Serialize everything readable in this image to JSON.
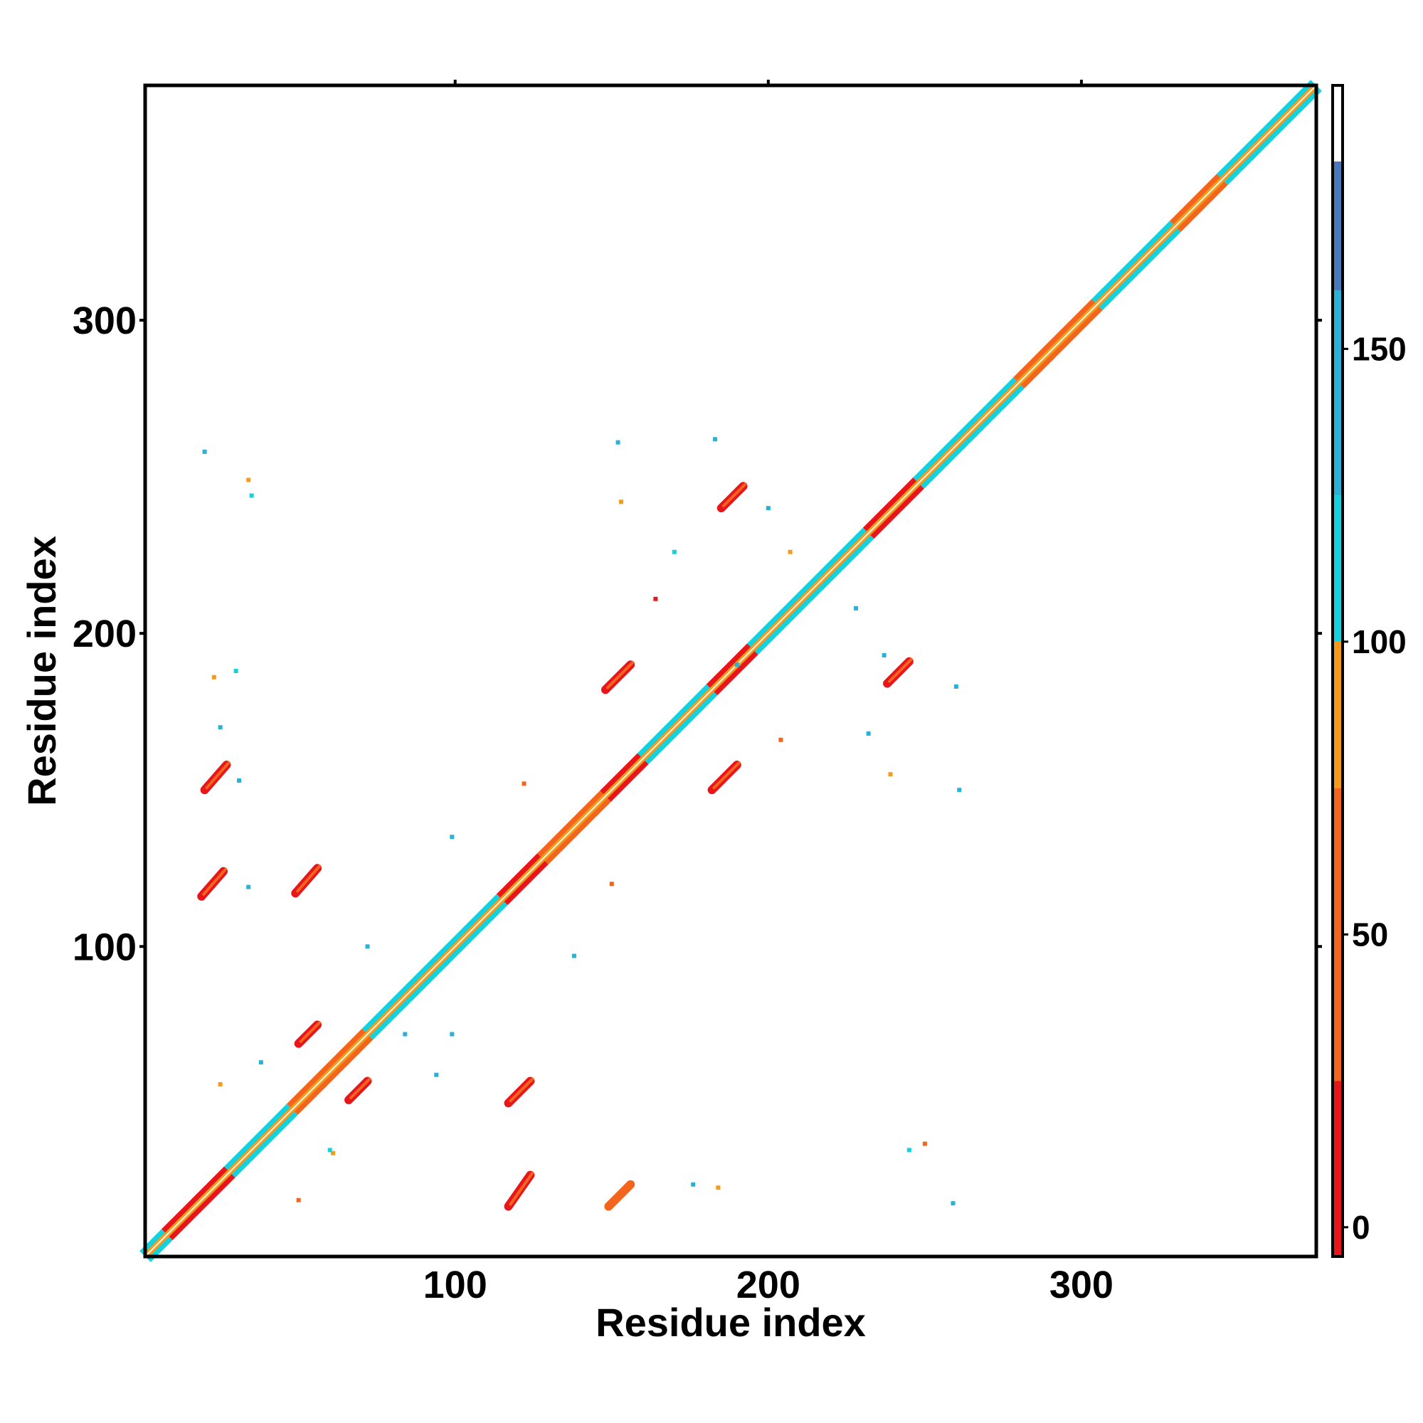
{
  "chart_data": {
    "type": "heatmap",
    "title": "",
    "xlabel": "Residue index",
    "ylabel": "Residue index",
    "xlim": [
      1,
      375
    ],
    "ylim": [
      1,
      375
    ],
    "x_ticks": [
      100,
      200,
      300
    ],
    "y_ticks": [
      100,
      200,
      300
    ],
    "grid": false,
    "colorbar": {
      "ticks": [
        0,
        50,
        100,
        150
      ],
      "range": [
        -5,
        195
      ],
      "bands": [
        {
          "from": -5,
          "to": 25,
          "color": "#e8151b"
        },
        {
          "from": 25,
          "to": 75,
          "color": "#f3641d"
        },
        {
          "from": 75,
          "to": 100,
          "color": "#f59a1a"
        },
        {
          "from": 100,
          "to": 125,
          "color": "#15d0dd"
        },
        {
          "from": 125,
          "to": 160,
          "color": "#2bb0d6"
        },
        {
          "from": 160,
          "to": 182,
          "color": "#4a78b8"
        },
        {
          "from": 182,
          "to": 195,
          "color": "#ffffff"
        }
      ]
    },
    "colors": {
      "red": "#e8151b",
      "orange_red": "#f3641d",
      "orange": "#f59a1a",
      "cyan": "#15d0dd",
      "light_blue": "#2bb0d6",
      "steel_blue": "#4a78b8"
    },
    "diagonal": {
      "segments": [
        {
          "from": 1,
          "to": 8,
          "color": "cyan"
        },
        {
          "from": 8,
          "to": 28,
          "color": "red"
        },
        {
          "from": 28,
          "to": 48,
          "color": "cyan"
        },
        {
          "from": 48,
          "to": 72,
          "color": "orange_red"
        },
        {
          "from": 72,
          "to": 95,
          "color": "cyan"
        },
        {
          "from": 95,
          "to": 115,
          "color": "cyan"
        },
        {
          "from": 115,
          "to": 128,
          "color": "red"
        },
        {
          "from": 128,
          "to": 148,
          "color": "orange_red"
        },
        {
          "from": 148,
          "to": 160,
          "color": "red"
        },
        {
          "from": 160,
          "to": 182,
          "color": "cyan"
        },
        {
          "from": 182,
          "to": 195,
          "color": "red"
        },
        {
          "from": 195,
          "to": 232,
          "color": "cyan"
        },
        {
          "from": 232,
          "to": 248,
          "color": "red"
        },
        {
          "from": 248,
          "to": 280,
          "color": "cyan"
        },
        {
          "from": 280,
          "to": 305,
          "color": "orange_red"
        },
        {
          "from": 305,
          "to": 330,
          "color": "cyan"
        },
        {
          "from": 330,
          "to": 345,
          "color": "orange_red"
        },
        {
          "from": 345,
          "to": 375,
          "color": "cyan"
        }
      ]
    },
    "contact_streaks": [
      {
        "x": [
          117,
          124
        ],
        "y": [
          17,
          27
        ],
        "color": "red"
      },
      {
        "x": [
          149,
          156
        ],
        "y": [
          17,
          24
        ],
        "color": "orange_red"
      },
      {
        "x": [
          117,
          124
        ],
        "y": [
          50,
          57
        ],
        "color": "red"
      },
      {
        "x": [
          66,
          72
        ],
        "y": [
          51,
          57
        ],
        "color": "red"
      },
      {
        "x": [
          50,
          56
        ],
        "y": [
          69,
          75
        ],
        "color": "red"
      },
      {
        "x": [
          19,
          26
        ],
        "y": [
          116,
          124
        ],
        "color": "red"
      },
      {
        "x": [
          49,
          56
        ],
        "y": [
          117,
          125
        ],
        "color": "red"
      },
      {
        "x": [
          20,
          27
        ],
        "y": [
          150,
          158
        ],
        "color": "red"
      },
      {
        "x": [
          182,
          190
        ],
        "y": [
          150,
          158
        ],
        "color": "red"
      },
      {
        "x": [
          148,
          156
        ],
        "y": [
          182,
          190
        ],
        "color": "red"
      },
      {
        "x": [
          238,
          245
        ],
        "y": [
          184,
          191
        ],
        "color": "red"
      },
      {
        "x": [
          185,
          192
        ],
        "y": [
          240,
          247
        ],
        "color": "red"
      }
    ],
    "scattered_contacts": [
      {
        "x": 20,
        "y": 258,
        "color": "light_blue"
      },
      {
        "x": 34,
        "y": 249,
        "color": "orange"
      },
      {
        "x": 35,
        "y": 244,
        "color": "cyan"
      },
      {
        "x": 152,
        "y": 261,
        "color": "light_blue"
      },
      {
        "x": 153,
        "y": 242,
        "color": "orange"
      },
      {
        "x": 183,
        "y": 262,
        "color": "light_blue"
      },
      {
        "x": 170,
        "y": 226,
        "color": "cyan"
      },
      {
        "x": 200,
        "y": 240,
        "color": "light_blue"
      },
      {
        "x": 207,
        "y": 226,
        "color": "orange"
      },
      {
        "x": 164,
        "y": 211,
        "color": "red"
      },
      {
        "x": 228,
        "y": 208,
        "color": "light_blue"
      },
      {
        "x": 237,
        "y": 193,
        "color": "light_blue"
      },
      {
        "x": 260,
        "y": 183,
        "color": "light_blue"
      },
      {
        "x": 232,
        "y": 168,
        "color": "light_blue"
      },
      {
        "x": 204,
        "y": 166,
        "color": "orange_red"
      },
      {
        "x": 239,
        "y": 155,
        "color": "orange"
      },
      {
        "x": 261,
        "y": 150,
        "color": "light_blue"
      },
      {
        "x": 23,
        "y": 186,
        "color": "orange"
      },
      {
        "x": 30,
        "y": 188,
        "color": "cyan"
      },
      {
        "x": 25,
        "y": 170,
        "color": "light_blue"
      },
      {
        "x": 31,
        "y": 153,
        "color": "light_blue"
      },
      {
        "x": 34,
        "y": 119,
        "color": "light_blue"
      },
      {
        "x": 38,
        "y": 63,
        "color": "light_blue"
      },
      {
        "x": 25,
        "y": 56,
        "color": "orange"
      },
      {
        "x": 61,
        "y": 34,
        "color": "orange"
      },
      {
        "x": 50,
        "y": 19,
        "color": "orange_red"
      },
      {
        "x": 94,
        "y": 59,
        "color": "light_blue"
      },
      {
        "x": 99,
        "y": 135,
        "color": "light_blue"
      },
      {
        "x": 150,
        "y": 120,
        "color": "orange_red"
      },
      {
        "x": 122,
        "y": 152,
        "color": "orange_red"
      },
      {
        "x": 138,
        "y": 97,
        "color": "light_blue"
      },
      {
        "x": 190,
        "y": 190,
        "color": "light_blue"
      },
      {
        "x": 184,
        "y": 23,
        "color": "orange"
      },
      {
        "x": 176,
        "y": 24,
        "color": "light_blue"
      },
      {
        "x": 245,
        "y": 35,
        "color": "cyan"
      },
      {
        "x": 250,
        "y": 37,
        "color": "orange_red"
      },
      {
        "x": 259,
        "y": 18,
        "color": "light_blue"
      },
      {
        "x": 60,
        "y": 35,
        "color": "cyan"
      },
      {
        "x": 84,
        "y": 72,
        "color": "light_blue"
      },
      {
        "x": 99,
        "y": 72,
        "color": "light_blue"
      },
      {
        "x": 72,
        "y": 100,
        "color": "light_blue"
      }
    ]
  }
}
